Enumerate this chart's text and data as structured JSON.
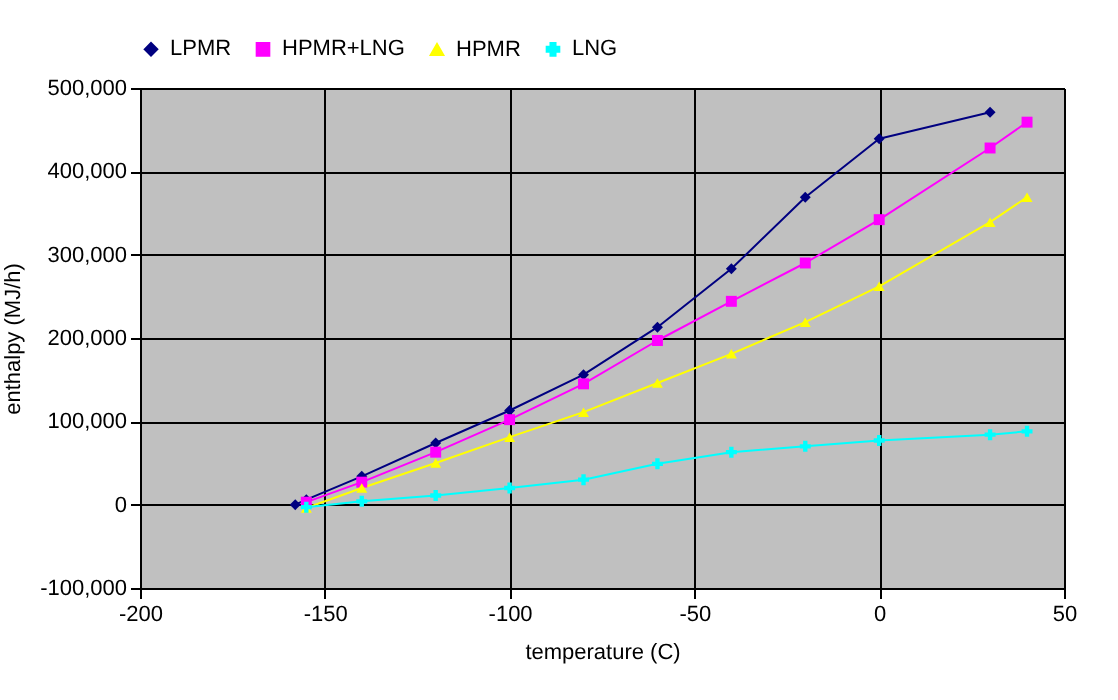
{
  "chart_data": {
    "type": "line",
    "xlabel": "temperature (C)",
    "ylabel": "enthalpy (MJ/h)",
    "x": [
      -158,
      -155,
      -140,
      -120,
      -100,
      -80,
      -60,
      -40,
      -20,
      0,
      30
    ],
    "series": [
      {
        "name": "LPMR",
        "color": "#000080",
        "marker": "diamond",
        "values": [
          0,
          6000,
          34000,
          74000,
          113000,
          156000,
          213000,
          283000,
          369000,
          439000,
          471000
        ]
      },
      {
        "name": "HPMR+LNG",
        "color": "#ff00ff",
        "marker": "square",
        "x": [
          -155,
          -140,
          -120,
          -100,
          -80,
          -60,
          -40,
          -20,
          0,
          30,
          40
        ],
        "values": [
          3000,
          27000,
          63000,
          102000,
          145000,
          197000,
          244000,
          290000,
          342000,
          428000,
          459000
        ]
      },
      {
        "name": "HPMR",
        "color": "#ffff00",
        "marker": "triangle",
        "x": [
          -155,
          -140,
          -120,
          -100,
          -80,
          -60,
          -40,
          -20,
          0,
          30,
          40
        ],
        "values": [
          -4000,
          20000,
          50000,
          81000,
          111000,
          146000,
          181000,
          219000,
          262000,
          339000,
          369000
        ]
      },
      {
        "name": "LNG",
        "color": "#00ffff",
        "marker": "cross",
        "x": [
          -155,
          -140,
          -120,
          -100,
          -80,
          -60,
          -40,
          -20,
          0,
          30,
          40
        ],
        "values": [
          -3000,
          4000,
          11000,
          20000,
          30000,
          49000,
          63000,
          70000,
          77000,
          84000,
          88000
        ]
      }
    ],
    "xlim": [
      -200,
      50
    ],
    "xticks": [
      -200,
      -150,
      -100,
      -50,
      0,
      50
    ],
    "ylim": [
      -100000,
      500000
    ],
    "yticks": [
      {
        "value": -100000,
        "label": "-100,000"
      },
      {
        "value": 0,
        "label": "0"
      },
      {
        "value": 100000,
        "label": "100,000"
      },
      {
        "value": 200000,
        "label": "200,000"
      },
      {
        "value": 300000,
        "label": "300,000"
      },
      {
        "value": 400000,
        "label": "400,000"
      },
      {
        "value": 500000,
        "label": "500,000"
      }
    ],
    "grid": true,
    "legend": "top",
    "line_style": "solid"
  }
}
